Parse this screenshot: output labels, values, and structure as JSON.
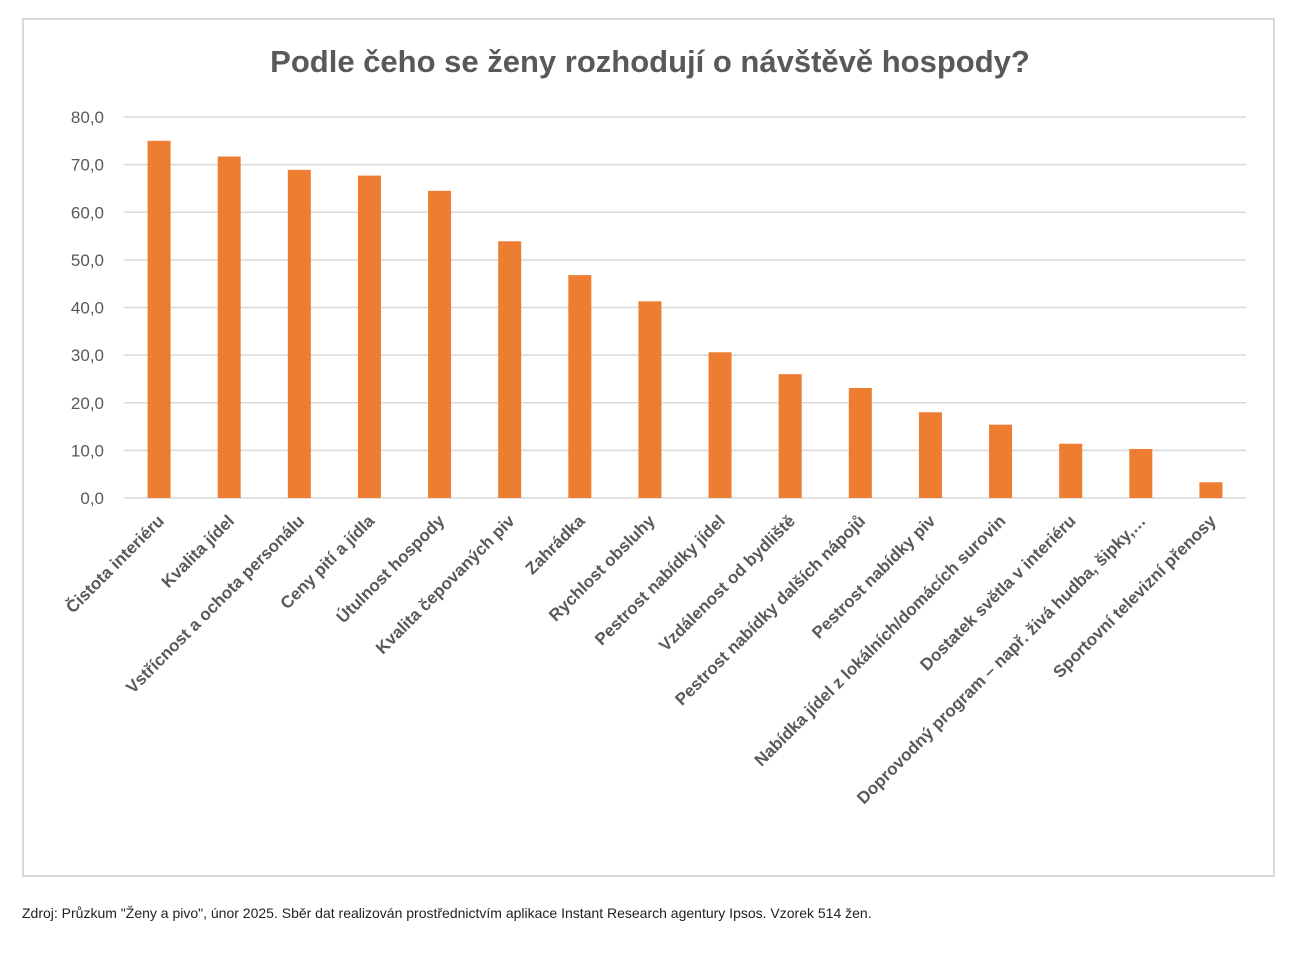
{
  "chart_data": {
    "type": "bar",
    "title": "Podle čeho se ženy rozhodují o návštěvě hospody?",
    "categories": [
      "Čistota interiéru",
      "Kvalita jídel",
      "Vstřícnost a ochota personálu",
      "Ceny pití a jídla",
      "Útulnost hospody",
      "Kvalita čepovaných piv",
      "Zahrádka",
      "Rychlost obsluhy",
      "Pestrost nabídky jídel",
      "Vzdálenost od bydliště",
      "Pestrost nabídky dalších nápojů",
      "Pestrost nabídky piv",
      "Nabídka jídel z lokálních/domácích surovin",
      "Dostatek světla v interiéru",
      "Doprovodný program – např. živá hudba, šipky,…",
      "Sportovní televizní přenosy"
    ],
    "values": [
      75.0,
      71.7,
      68.9,
      67.7,
      64.5,
      53.9,
      46.8,
      41.3,
      30.6,
      26.0,
      23.1,
      18.0,
      15.4,
      11.4,
      10.3,
      3.3
    ],
    "ylim": [
      0,
      80
    ],
    "yticks": [
      "0,0",
      "10,0",
      "20,0",
      "30,0",
      "40,0",
      "50,0",
      "60,0",
      "70,0",
      "80,0"
    ],
    "bar_color": "#ED7D31",
    "grid": true,
    "legend": "none"
  },
  "source": "Zdroj: Průzkum \"Ženy a pivo\", únor 2025. Sběr dat realizován prostřednictvím aplikace Instant Research agentury Ipsos. Vzorek 514 žen."
}
